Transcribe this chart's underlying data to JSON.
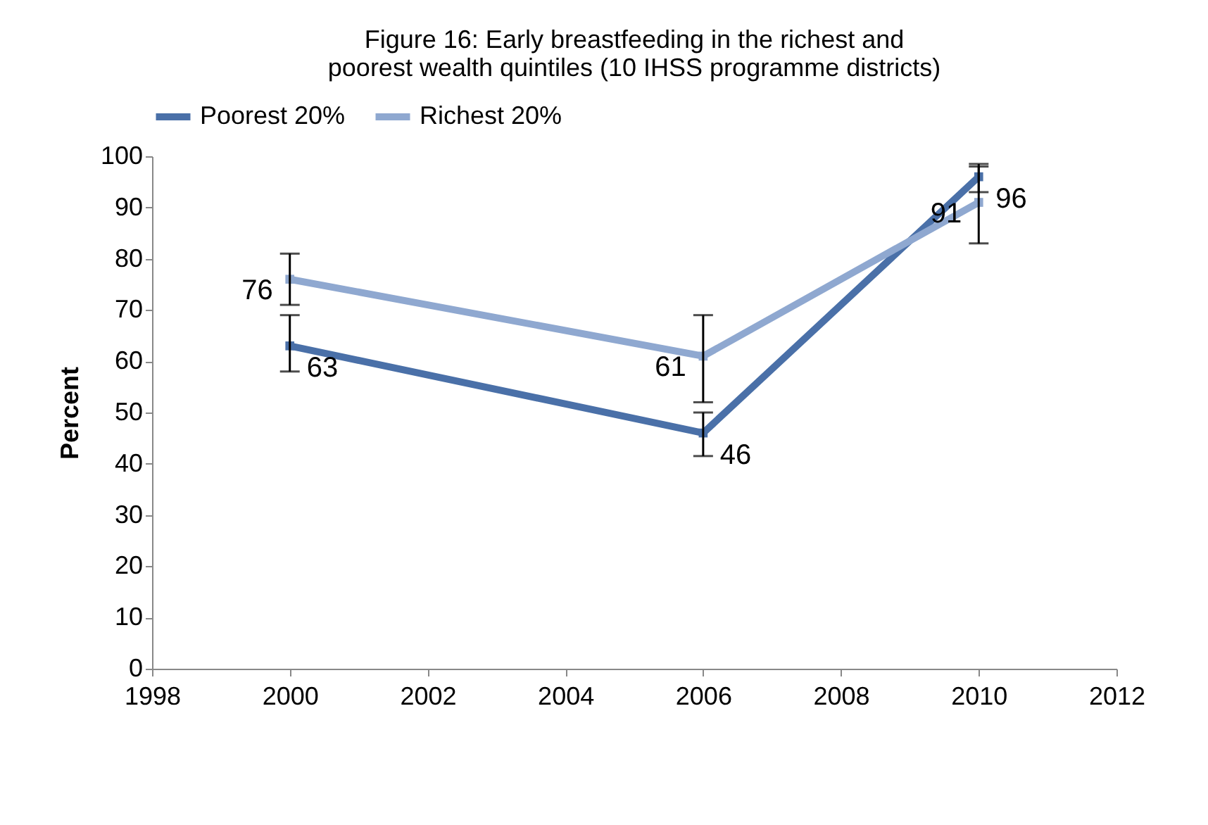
{
  "chart_data": {
    "type": "line",
    "title": "Figure 16: Early breastfeeding in the richest and poorest wealth quintiles (10 IHSS programme districts)",
    "ylabel": "Percent",
    "x": [
      2000,
      2006,
      2010
    ],
    "series": [
      {
        "name": "Poorest 20%",
        "color": "#4a70a8",
        "values": [
          63,
          46,
          96
        ],
        "errors": [
          [
            58,
            69
          ],
          [
            41.5,
            50
          ],
          [
            93,
            98.5
          ]
        ]
      },
      {
        "name": "Richest 20%",
        "color": "#8fa8d0",
        "values": [
          76,
          61,
          91
        ],
        "errors": [
          [
            71,
            81
          ],
          [
            52,
            69
          ],
          [
            83,
            98
          ]
        ]
      }
    ],
    "xlim": [
      1998,
      2012
    ],
    "xticks": [
      1998,
      2000,
      2002,
      2004,
      2006,
      2008,
      2010,
      2012
    ],
    "ylim": [
      0,
      100
    ],
    "yticks": [
      0,
      10,
      20,
      30,
      40,
      50,
      60,
      70,
      80,
      90,
      100
    ],
    "grid": false,
    "legend": "top",
    "marker": "square",
    "line_style": "solid",
    "data_labels": true
  }
}
